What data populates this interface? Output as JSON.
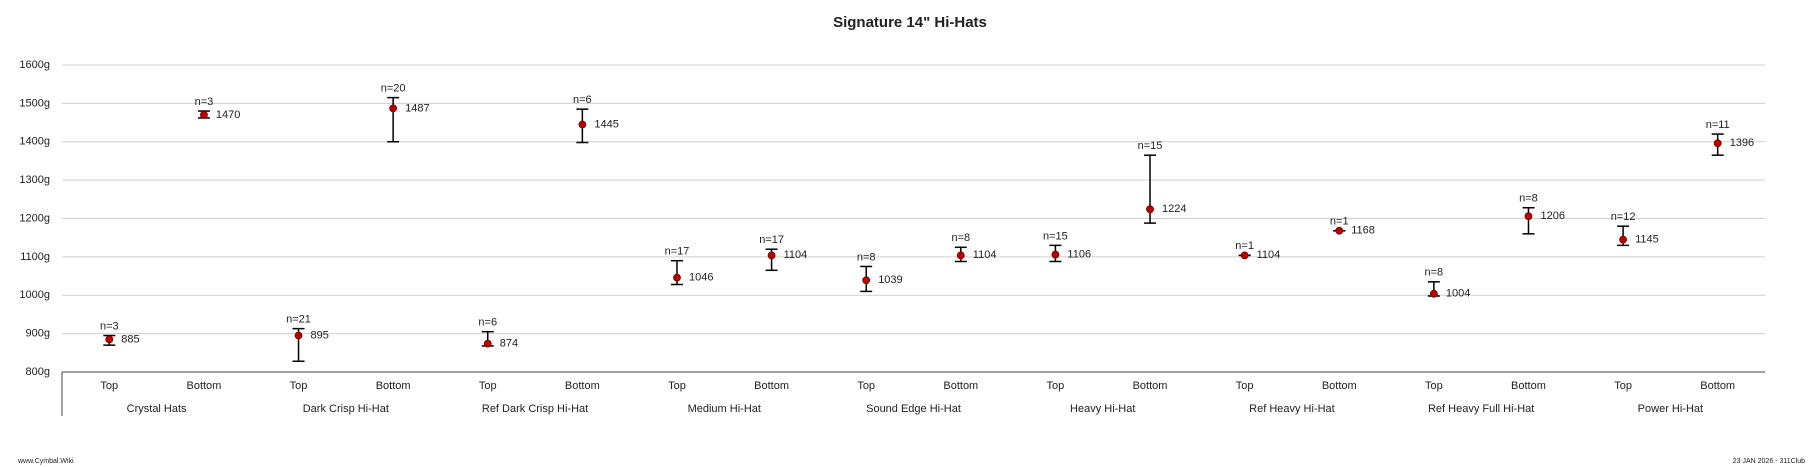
{
  "chart_data": {
    "type": "errorbar",
    "title": "Signature 14\" Hi-Hats",
    "categories": [
      "Top",
      "Bottom",
      "Top",
      "Bottom",
      "Top",
      "Bottom",
      "Top",
      "Bottom",
      "Top",
      "Bottom",
      "Top",
      "Bottom",
      "Top",
      "Bottom",
      "Top",
      "Bottom",
      "Top",
      "Bottom"
    ],
    "groups": [
      "Crystal Hats",
      "Dark Crisp Hi-Hat",
      "Ref Dark Crisp Hi-Hat",
      "Medium Hi-Hat",
      "Sound Edge Hi-Hat",
      "Heavy Hi-Hat",
      "Ref Heavy Hi-Hat",
      "Ref Heavy Full Hi-Hat",
      "Power Hi-Hat"
    ],
    "series": [
      {
        "color": "#c00000",
        "values": [
          885,
          1470,
          895,
          1487,
          874,
          1445,
          1046,
          1104,
          1039,
          1104,
          1106,
          1224,
          1104,
          1168,
          1004,
          1206,
          1145,
          1396
        ],
        "low": [
          870,
          1462,
          828,
          1400,
          868,
          1398,
          1028,
          1065,
          1010,
          1088,
          1088,
          1188,
          1104,
          1168,
          998,
          1160,
          1130,
          1365
        ],
        "high": [
          895,
          1480,
          913,
          1515,
          905,
          1485,
          1090,
          1120,
          1075,
          1125,
          1130,
          1365,
          1104,
          1168,
          1035,
          1228,
          1180,
          1420
        ],
        "n_labels": [
          "n=3",
          "n=3",
          "n=21",
          "n=20",
          "n=6",
          "n=6",
          "n=17",
          "n=17",
          "n=8",
          "n=8",
          "n=15",
          "n=15",
          "n=1",
          "n=1",
          "n=8",
          "n=8",
          "n=12",
          "n=11"
        ]
      }
    ],
    "ylim": [
      800,
      1600
    ],
    "yticks": [
      {
        "value": 800,
        "label": "800g"
      },
      {
        "value": 900,
        "label": "900g"
      },
      {
        "value": 1000,
        "label": "1000g"
      },
      {
        "value": 1100,
        "label": "1100g"
      },
      {
        "value": 1200,
        "label": "1200g"
      },
      {
        "value": 1300,
        "label": "1300g"
      },
      {
        "value": 1400,
        "label": "1400g"
      },
      {
        "value": 1500,
        "label": "1500g"
      },
      {
        "value": 1600,
        "label": "1600g"
      }
    ],
    "grid": true,
    "footer_left": "www.Cymbal.Wiki",
    "footer_right": "23 JAN 2026 - 311Club"
  }
}
